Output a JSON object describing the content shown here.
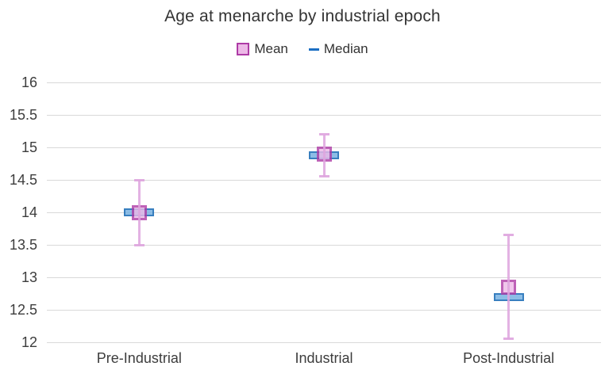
{
  "chart": {
    "title": "Age at menarche by industrial epoch",
    "legend": {
      "mean_label": "Mean",
      "median_label": "Median"
    }
  },
  "chart_data": {
    "type": "errorbar",
    "title": "Age at menarche by industrial epoch",
    "categories": [
      "Pre-Industrial",
      "Industrial",
      "Post-Industrial"
    ],
    "series": [
      {
        "name": "Mean",
        "marker": "square",
        "values": [
          14.0,
          14.9,
          12.85
        ]
      },
      {
        "name": "Median",
        "marker": "horizontal-bar",
        "values": [
          14.0,
          14.88,
          12.7
        ]
      }
    ],
    "error_bars": {
      "attached_to": "Mean",
      "low": [
        13.5,
        14.55,
        12.05
      ],
      "high": [
        14.5,
        15.2,
        13.65
      ]
    },
    "xlabel": "",
    "ylabel": "",
    "ylim": [
      12,
      16
    ],
    "yticks": [
      12,
      12.5,
      13,
      13.5,
      14,
      14.5,
      15,
      15.5,
      16
    ],
    "grid": "horizontal",
    "legend_position": "top",
    "colors": {
      "mean_fill": "#edb9e7",
      "mean_border": "#ae3ba6",
      "median_fill": "#78b2e2",
      "median_border": "#1669b5",
      "whisker": "#dea4de",
      "gridline": "#d9d9d9",
      "text": "#3d3d3d",
      "title_text": "#333333"
    }
  }
}
